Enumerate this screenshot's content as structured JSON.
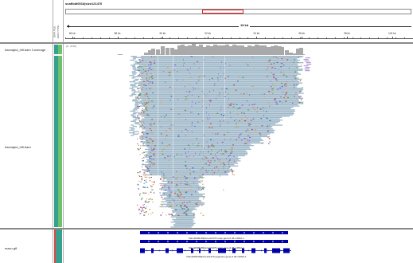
{
  "header": {
    "locus": "scaffold0016|size121470",
    "scale_span": "15 kb"
  },
  "attribute_header": [
    "DATA FILE",
    "DATA TYPE"
  ],
  "ruler": {
    "ticks": [
      {
        "label": "86 kb",
        "pos": 0.02
      },
      {
        "label": "88 kb",
        "pos": 0.15
      },
      {
        "label": "90 kb",
        "pos": 0.28
      },
      {
        "label": "92 kb",
        "pos": 0.41
      },
      {
        "label": "94 kb",
        "pos": 0.55
      },
      {
        "label": "96 kb",
        "pos": 0.68
      },
      {
        "label": "98 kb",
        "pos": 0.81
      },
      {
        "label": "100 kb",
        "pos": 0.94
      }
    ]
  },
  "tracks": {
    "coverage": {
      "name": "hannajed_hifi.bam Coverage",
      "range": "[0 - 3710]"
    },
    "alignment": {
      "name": "hannajed_hifi.bam"
    },
    "annotation": {
      "name": "macu.gff"
    }
  },
  "genes": {
    "label_1": "Macu0000169|size121470-snap-gene-0.45-mRNA-1",
    "label_2": "Macu0000169|size121470-snap-gene-0.45-mRNA-1",
    "label_3": "Macu0000169|size121470-augustus-gene-0.29-mRNA-1"
  },
  "colors": {
    "read_fill": "#9db7c8",
    "coverage": "#a9a9a9",
    "gene": "#0000a8",
    "attr_teal": "#39a08f",
    "attr_green": "#6ac36a",
    "attr_red": "#d94b4b",
    "locator": "#e02020"
  }
}
